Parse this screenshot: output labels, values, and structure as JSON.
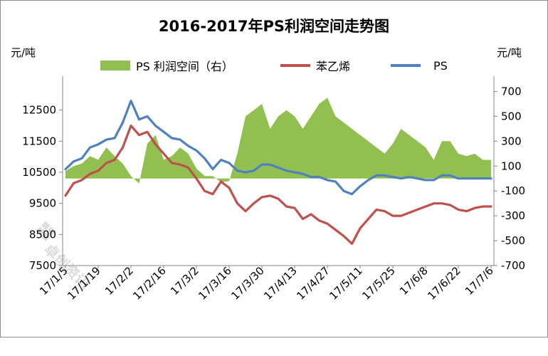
{
  "header": {
    "title": "2016-2017年PS利润空间走势图",
    "unit_left": "元/吨",
    "unit_right": "元/吨"
  },
  "watermark": {
    "text": "卓创资讯"
  },
  "chart_data": {
    "type": "line",
    "title": "2016-2017年PS利润空间走势图",
    "x_tick_labels": [
      "17/1/5",
      "17/1/19",
      "17/2/2",
      "17/2/16",
      "17/3/2",
      "17/3/16",
      "17/3/30",
      "17/4/13",
      "17/4/27",
      "17/5/11",
      "17/5/25",
      "17/6/8",
      "17/6/22",
      "17/7/6"
    ],
    "x": [
      "17/1/5",
      "17/1/9",
      "17/1/12",
      "17/1/16",
      "17/1/19",
      "17/1/23",
      "17/1/26",
      "17/1/30",
      "17/2/2",
      "17/2/6",
      "17/2/9",
      "17/2/13",
      "17/2/16",
      "17/2/20",
      "17/2/23",
      "17/2/27",
      "17/3/2",
      "17/3/6",
      "17/3/9",
      "17/3/13",
      "17/3/16",
      "17/3/20",
      "17/3/23",
      "17/3/27",
      "17/3/30",
      "17/4/3",
      "17/4/6",
      "17/4/10",
      "17/4/13",
      "17/4/17",
      "17/4/20",
      "17/4/24",
      "17/4/27",
      "17/5/1",
      "17/5/4",
      "17/5/8",
      "17/5/11",
      "17/5/15",
      "17/5/18",
      "17/5/22",
      "17/5/25",
      "17/5/29",
      "17/6/1",
      "17/6/5",
      "17/6/8",
      "17/6/12",
      "17/6/15",
      "17/6/19",
      "17/6/22",
      "17/6/26",
      "17/6/29",
      "17/7/3",
      "17/7/6"
    ],
    "y_left": {
      "min": 7500,
      "max": 13500,
      "ticks": [
        7500,
        8500,
        9500,
        10500,
        11500,
        12500
      ]
    },
    "y_right": {
      "min": -700,
      "max": 800,
      "ticks": [
        -700,
        -500,
        -300,
        -100,
        100,
        300,
        500,
        700
      ]
    },
    "legend": {
      "position": "top"
    },
    "series": [
      {
        "name": "PS 利润空间（右）",
        "type": "area",
        "axis": "right",
        "color": "#92C050",
        "values": [
          60,
          100,
          120,
          180,
          150,
          250,
          180,
          120,
          20,
          -40,
          280,
          350,
          150,
          180,
          250,
          200,
          80,
          20,
          20,
          -30,
          -20,
          200,
          500,
          550,
          600,
          400,
          500,
          550,
          500,
          400,
          500,
          600,
          650,
          500,
          450,
          400,
          350,
          300,
          250,
          200,
          280,
          400,
          350,
          300,
          250,
          150,
          300,
          300,
          200,
          180,
          200,
          150,
          150
        ]
      },
      {
        "name": "苯乙烯",
        "type": "line",
        "axis": "left",
        "color": "#C0504D",
        "values": [
          9750,
          10150,
          10250,
          10450,
          10550,
          10800,
          10900,
          11300,
          12000,
          11700,
          11800,
          11400,
          11100,
          10800,
          10750,
          10650,
          10300,
          9900,
          9800,
          10200,
          10000,
          9500,
          9250,
          9500,
          9700,
          9750,
          9650,
          9400,
          9350,
          9000,
          9150,
          8950,
          8850,
          8650,
          8450,
          8200,
          8700,
          9000,
          9300,
          9250,
          9100,
          9100,
          9200,
          9300,
          9400,
          9500,
          9500,
          9450,
          9300,
          9250,
          9350,
          9400,
          9400
        ]
      },
      {
        "name": "PS",
        "type": "line",
        "axis": "left",
        "color": "#4F81BD",
        "values": [
          10600,
          10850,
          10950,
          11300,
          11400,
          11550,
          11600,
          12100,
          12800,
          12200,
          12300,
          12000,
          11800,
          11600,
          11550,
          11350,
          11200,
          10950,
          10600,
          10900,
          10800,
          10550,
          10500,
          10550,
          10750,
          10750,
          10650,
          10550,
          10500,
          10450,
          10350,
          10350,
          10250,
          10200,
          9900,
          9800,
          10050,
          10250,
          10400,
          10400,
          10350,
          10300,
          10350,
          10300,
          10250,
          10250,
          10400,
          10400,
          10300,
          10300,
          10300,
          10300,
          10300
        ]
      }
    ]
  }
}
